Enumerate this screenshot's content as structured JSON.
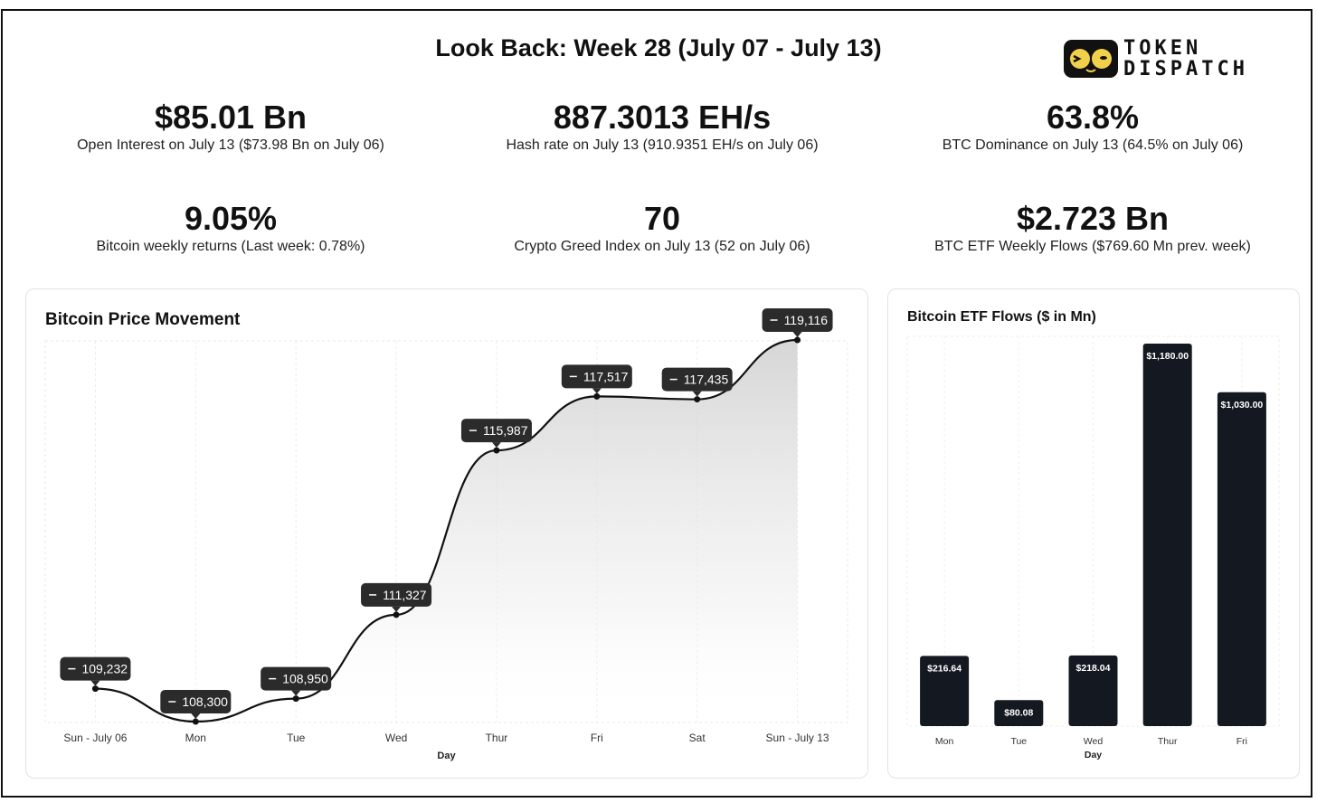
{
  "title": "Look Back: Week 28 (July 07 - July 13)",
  "logo": {
    "line1": "TOKEN",
    "line2": "DISPATCH",
    "icon": "glasses-face-logo"
  },
  "stats": [
    {
      "value": "$85.01 Bn",
      "label": "Open Interest on July 13 ($73.98 Bn on July 06)"
    },
    {
      "value": "887.3013 EH/s",
      "label": "Hash rate on July 13 (910.9351 EH/s on July 06)"
    },
    {
      "value": "63.8%",
      "label": "BTC Dominance on July 13 (64.5% on July 06)"
    },
    {
      "value": "9.05%",
      "label": "Bitcoin weekly returns (Last week: 0.78%)"
    },
    {
      "value": "70",
      "label": "Crypto Greed Index on July 13 (52 on July 06)"
    },
    {
      "value": "$2.723 Bn",
      "label": "BTC ETF Weekly Flows ($769.60 Mn prev. week)"
    }
  ],
  "chart_data": [
    {
      "type": "area",
      "title": "Bitcoin Price Movement",
      "xlabel": "Day",
      "ylabel": "",
      "categories": [
        "Sun - July 06",
        "Mon",
        "Tue",
        "Wed",
        "Thur",
        "Fri",
        "Sat",
        "Sun - July 13"
      ],
      "values": [
        109232,
        108300,
        108950,
        111327,
        115987,
        117517,
        117435,
        119116
      ],
      "labels": [
        "109,232",
        "108,300",
        "108,950",
        "111,327",
        "115,987",
        "117,517",
        "117,435",
        "119,116"
      ],
      "ylim": [
        108300,
        119116
      ],
      "grid": true,
      "colors": {
        "line": "#111111",
        "label_bg": "#2b2b2b",
        "label_text": "#ffffff"
      }
    },
    {
      "type": "bar",
      "title": "Bitcoin ETF Flows ($ in Mn)",
      "xlabel": "Day",
      "ylabel": "",
      "categories": [
        "Mon",
        "Tue",
        "Wed",
        "Thur",
        "Fri"
      ],
      "values": [
        216.64,
        80.08,
        218.04,
        1180.0,
        1030.0
      ],
      "labels": [
        "$216.64",
        "$80.08",
        "$218.04",
        "$1,180.00",
        "$1,030.00"
      ],
      "ylim": [
        0,
        1180
      ],
      "grid": true,
      "colors": {
        "bar": "#141821",
        "label_text": "#ffffff"
      }
    }
  ]
}
